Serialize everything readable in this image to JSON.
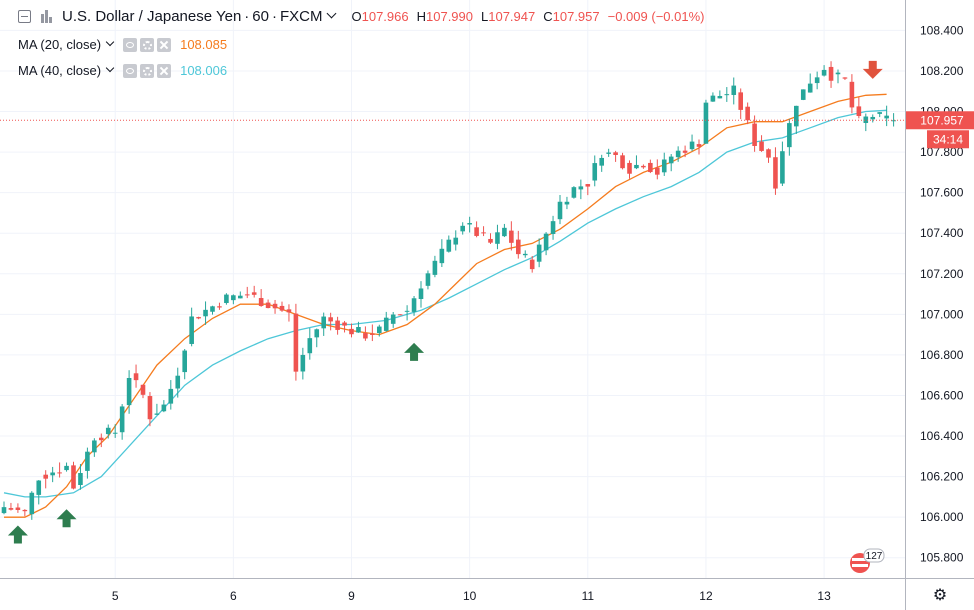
{
  "header": {
    "symbol": "U.S. Dollar / Japanese Yen",
    "separator": "·",
    "interval": "60",
    "exchange": "FXCM",
    "open_label": "O",
    "open": "107.966",
    "high_label": "H",
    "high": "107.990",
    "low_label": "L",
    "low": "107.947",
    "close_label": "C",
    "close": "107.957",
    "change": "−0.009 (−0.01%)"
  },
  "indicators": [
    {
      "label": "MA (20, close)",
      "value": "108.085",
      "color": "#f57c1f"
    },
    {
      "label": "MA (40, close)",
      "value": "108.006",
      "color": "#4ec7d8"
    }
  ],
  "price_tag": {
    "value": "107.957",
    "countdown": "34:14",
    "color": "#ef5350"
  },
  "events": {
    "count": "127"
  },
  "colors": {
    "up": "#26a69a",
    "down": "#ef5350",
    "ma20": "#f57c1f",
    "ma40": "#4ec7d8",
    "arrow_up": "#2e7d4f",
    "arrow_down": "#e0533d"
  },
  "chart_data": {
    "type": "candlestick",
    "ylim": [
      105.7,
      108.55
    ],
    "y_ticks": [
      "108.400",
      "108.200",
      "108.000",
      "107.800",
      "107.600",
      "107.400",
      "107.200",
      "107.000",
      "106.800",
      "106.600",
      "106.400",
      "106.200",
      "106.000",
      "105.800"
    ],
    "x_ticks": [
      {
        "label": "5",
        "index": 16
      },
      {
        "label": "6",
        "index": 33
      },
      {
        "label": "9",
        "index": 50
      },
      {
        "label": "10",
        "index": 67
      },
      {
        "label": "11",
        "index": 84
      },
      {
        "label": "12",
        "index": 101
      },
      {
        "label": "13",
        "index": 118
      }
    ],
    "x_count": 133,
    "close_anchors": [
      [
        0,
        106.05
      ],
      [
        3,
        106.02
      ],
      [
        5,
        106.2
      ],
      [
        9,
        106.25
      ],
      [
        10,
        106.15
      ],
      [
        13,
        106.4
      ],
      [
        16,
        106.42
      ],
      [
        18,
        106.7
      ],
      [
        20,
        106.6
      ],
      [
        21,
        106.5
      ],
      [
        23,
        106.55
      ],
      [
        25,
        106.72
      ],
      [
        27,
        106.98
      ],
      [
        29,
        107.02
      ],
      [
        32,
        107.08
      ],
      [
        35,
        107.1
      ],
      [
        38,
        107.05
      ],
      [
        41,
        107.0
      ],
      [
        42,
        106.72
      ],
      [
        44,
        106.88
      ],
      [
        46,
        106.98
      ],
      [
        48,
        106.95
      ],
      [
        50,
        106.92
      ],
      [
        52,
        106.9
      ],
      [
        54,
        106.92
      ],
      [
        56,
        107.0
      ],
      [
        58,
        107.02
      ],
      [
        60,
        107.15
      ],
      [
        62,
        107.25
      ],
      [
        64,
        107.35
      ],
      [
        66,
        107.45
      ],
      [
        68,
        107.4
      ],
      [
        70,
        107.35
      ],
      [
        72,
        107.42
      ],
      [
        74,
        107.3
      ],
      [
        76,
        107.25
      ],
      [
        78,
        107.4
      ],
      [
        80,
        107.55
      ],
      [
        82,
        107.62
      ],
      [
        84,
        107.65
      ],
      [
        86,
        107.8
      ],
      [
        88,
        107.78
      ],
      [
        90,
        107.72
      ],
      [
        92,
        107.75
      ],
      [
        94,
        107.7
      ],
      [
        96,
        107.78
      ],
      [
        98,
        107.82
      ],
      [
        100,
        107.85
      ],
      [
        101,
        108.05
      ],
      [
        103,
        108.08
      ],
      [
        105,
        108.1
      ],
      [
        106,
        108.02
      ],
      [
        108,
        107.85
      ],
      [
        110,
        107.78
      ],
      [
        111,
        107.65
      ],
      [
        112,
        107.82
      ],
      [
        114,
        108.05
      ],
      [
        116,
        108.15
      ],
      [
        118,
        108.22
      ],
      [
        119,
        108.18
      ],
      [
        121,
        108.15
      ],
      [
        122,
        108.02
      ],
      [
        123,
        107.95
      ],
      [
        125,
        107.98
      ],
      [
        127,
        107.96
      ],
      [
        128,
        107.957
      ]
    ],
    "ma20_anchors": [
      [
        0,
        106.0
      ],
      [
        3,
        106.0
      ],
      [
        6,
        106.05
      ],
      [
        9,
        106.15
      ],
      [
        12,
        106.3
      ],
      [
        15,
        106.4
      ],
      [
        19,
        106.6
      ],
      [
        22,
        106.75
      ],
      [
        26,
        106.88
      ],
      [
        30,
        106.98
      ],
      [
        34,
        107.05
      ],
      [
        38,
        107.05
      ],
      [
        42,
        107.0
      ],
      [
        46,
        106.95
      ],
      [
        50,
        106.92
      ],
      [
        54,
        106.9
      ],
      [
        58,
        106.95
      ],
      [
        62,
        107.05
      ],
      [
        65,
        107.15
      ],
      [
        68,
        107.25
      ],
      [
        72,
        107.32
      ],
      [
        76,
        107.35
      ],
      [
        80,
        107.42
      ],
      [
        84,
        107.52
      ],
      [
        88,
        107.63
      ],
      [
        92,
        107.7
      ],
      [
        96,
        107.75
      ],
      [
        100,
        107.82
      ],
      [
        104,
        107.92
      ],
      [
        108,
        107.95
      ],
      [
        112,
        107.95
      ],
      [
        116,
        108.0
      ],
      [
        120,
        108.05
      ],
      [
        124,
        108.08
      ],
      [
        127,
        108.085
      ]
    ],
    "ma40_anchors": [
      [
        0,
        106.12
      ],
      [
        3,
        106.1
      ],
      [
        6,
        106.1
      ],
      [
        10,
        106.12
      ],
      [
        14,
        106.2
      ],
      [
        18,
        106.35
      ],
      [
        22,
        106.5
      ],
      [
        26,
        106.65
      ],
      [
        30,
        106.75
      ],
      [
        34,
        106.82
      ],
      [
        38,
        106.88
      ],
      [
        42,
        106.92
      ],
      [
        46,
        106.95
      ],
      [
        50,
        106.95
      ],
      [
        55,
        106.97
      ],
      [
        60,
        107.02
      ],
      [
        64,
        107.08
      ],
      [
        68,
        107.15
      ],
      [
        72,
        107.22
      ],
      [
        76,
        107.28
      ],
      [
        80,
        107.36
      ],
      [
        84,
        107.45
      ],
      [
        88,
        107.52
      ],
      [
        92,
        107.58
      ],
      [
        96,
        107.63
      ],
      [
        100,
        107.7
      ],
      [
        104,
        107.8
      ],
      [
        108,
        107.85
      ],
      [
        112,
        107.87
      ],
      [
        116,
        107.92
      ],
      [
        120,
        107.97
      ],
      [
        124,
        108.0
      ],
      [
        127,
        108.006
      ]
    ],
    "markers": [
      {
        "type": "arrow-up",
        "index": 2,
        "price": 105.9
      },
      {
        "type": "arrow-up",
        "index": 9,
        "price": 105.98
      },
      {
        "type": "arrow-up",
        "index": 59,
        "price": 106.8
      },
      {
        "type": "arrow-down",
        "index": 125,
        "price": 108.22
      }
    ],
    "last_price": 107.957
  }
}
